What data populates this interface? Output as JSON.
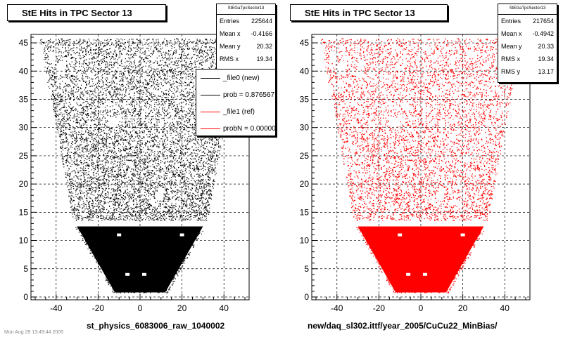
{
  "chart_data": [
    {
      "type": "scatter",
      "title": "StE Hits in TPC Sector 13",
      "xlabel": "st_physics_6083006_raw_1040002",
      "ylabel": "",
      "xlim": [
        -52,
        52
      ],
      "ylim": [
        -0.5,
        46.5
      ],
      "xticks": [
        -40,
        -20,
        0,
        20,
        40
      ],
      "yticks": [
        0,
        5,
        10,
        15,
        20,
        25,
        30,
        35,
        40,
        45
      ],
      "grid": true,
      "color": "#000000",
      "stats": {
        "name": "StEGaTpcSector13",
        "entries_label": "Entries",
        "entries": "225644",
        "meanx_label": "Mean x",
        "meanx": "-0.4166",
        "meany_label": "Mean y",
        "meany": "20.32",
        "rmsx_label": "RMS x",
        "rmsx": "19.34"
      },
      "legend": {
        "placement": "top-right",
        "entries": [
          {
            "label": "_file0 (new)",
            "color": "#000000"
          },
          {
            "label": "prob = 0.876567",
            "color": "#000000"
          },
          {
            "label": "_file1 (ref)",
            "color": "#ff0000"
          },
          {
            "label": "probN = 0.000000",
            "color": "#ff0000"
          }
        ]
      }
    },
    {
      "type": "scatter",
      "title": "StE Hits in TPC Sector 13",
      "xlabel": "new/daq_sl302.ittf/year_2005/CuCu22_MinBias/",
      "ylabel": "",
      "xlim": [
        -52,
        52
      ],
      "ylim": [
        -0.5,
        46.5
      ],
      "xticks": [
        -40,
        -20,
        0,
        20,
        40
      ],
      "yticks": [
        0,
        5,
        10,
        15,
        20,
        25,
        30,
        35,
        40,
        45
      ],
      "grid": true,
      "color": "#ff0000",
      "stats": {
        "name": "StEGaTpcSector13",
        "entries_label": "Entries",
        "entries": "217654",
        "meanx_label": "Mean x",
        "meanx": "-0.4942",
        "meany_label": "Mean y",
        "meany": "20.33",
        "rmsx_label": "RMS x",
        "rmsx": "19.34",
        "rmsy_label": "RMS y",
        "rmsy": "13.17"
      }
    }
  ],
  "footer": "Mon Aug 29 13:49:44 2005"
}
